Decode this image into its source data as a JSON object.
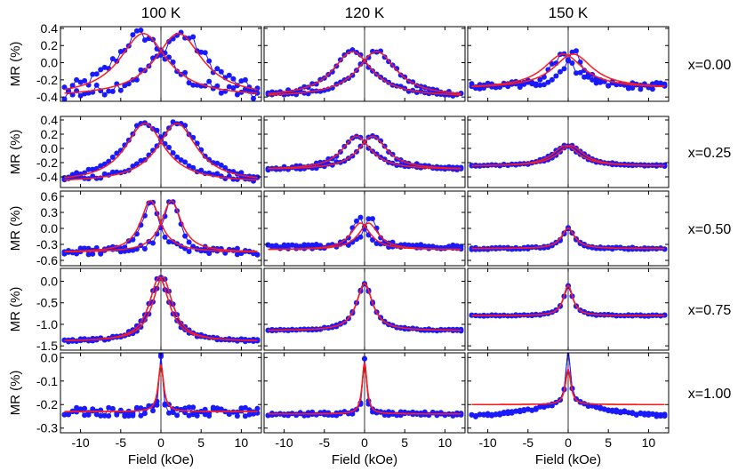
{
  "chart_data": {
    "type": "scatter",
    "layout": "grid-5x3",
    "xlabel": "Field (kOe)",
    "ylabel": "MR (%)",
    "xlim": [
      -12.5,
      12.5
    ],
    "xticks": [
      -10,
      -5,
      0,
      5,
      10
    ],
    "columns": [
      "100 K",
      "120 K",
      "150 K"
    ],
    "rows": [
      {
        "label": "x=0.00",
        "ylim": [
          -0.45,
          0.42
        ],
        "yticks": [
          -0.4,
          -0.2,
          0.0,
          0.2,
          0.4
        ],
        "ytick_labels": [
          "-0.4",
          "-0.2",
          "0.0",
          "0.2",
          "0.4"
        ]
      },
      {
        "label": "x=0.25",
        "ylim": [
          -0.55,
          0.45
        ],
        "yticks": [
          -0.4,
          -0.2,
          0.0,
          0.2,
          0.4
        ],
        "ytick_labels": [
          "-0.4",
          "-0.2",
          "0.0",
          "0.2",
          "0.4"
        ]
      },
      {
        "label": "x=0.50",
        "ylim": [
          -0.7,
          0.7
        ],
        "yticks": [
          -0.6,
          -0.3,
          0.0,
          0.3,
          0.6
        ],
        "ytick_labels": [
          "-0.6",
          "-0.3",
          "0.0",
          "0.3",
          "0.6"
        ]
      },
      {
        "label": "x=0.75",
        "ylim": [
          -1.6,
          0.3
        ],
        "yticks": [
          -1.5,
          -1.0,
          -0.5,
          0.0
        ],
        "ytick_labels": [
          "-1.5",
          "-1.0",
          "-0.5",
          "0.0"
        ]
      },
      {
        "label": "x=1.00",
        "ylim": [
          -0.32,
          0.02
        ],
        "yticks": [
          -0.3,
          -0.2,
          -0.1,
          0.0
        ],
        "ytick_labels": [
          "-0.3",
          "-0.2",
          "-0.1",
          "0.0"
        ]
      }
    ],
    "series_colors": {
      "data": "#1a1aff",
      "fit": "#ff1a1a"
    },
    "panels": [
      [
        {
          "base": -0.42,
          "peak": 0.33,
          "h": 2.5,
          "w": 4.0,
          "noise": 0.07,
          "fit_base": -0.4,
          "fit_peak": 0.34,
          "fit_h": 2.2,
          "fit_w": 3.6
        },
        {
          "base": -0.4,
          "peak": 0.13,
          "h": 1.5,
          "w": 3.0,
          "noise": 0.02,
          "fit_base": -0.4,
          "fit_peak": 0.13,
          "fit_h": 1.5,
          "fit_w": 3.0
        },
        {
          "base": -0.28,
          "peak": 0.12,
          "h": 0.7,
          "w": 1.5,
          "noise": 0.04,
          "fit_base": -0.3,
          "fit_peak": 0.1,
          "fit_h": 0.6,
          "fit_w": 3.0
        }
      ],
      [
        {
          "base": -0.48,
          "peak": 0.37,
          "h": 2.0,
          "w": 3.3,
          "noise": 0.03,
          "fit_base": -0.48,
          "fit_peak": 0.35,
          "fit_h": 2.0,
          "fit_w": 3.0
        },
        {
          "base": -0.3,
          "peak": 0.17,
          "h": 1.0,
          "w": 2.2,
          "noise": 0.02,
          "fit_base": -0.3,
          "fit_peak": 0.17,
          "fit_h": 1.0,
          "fit_w": 2.2
        },
        {
          "base": -0.25,
          "peak": 0.04,
          "h": 0.3,
          "w": 2.0,
          "noise": 0.01,
          "fit_base": -0.25,
          "fit_peak": 0.04,
          "fit_h": 0.3,
          "fit_w": 2.0
        }
      ],
      [
        {
          "base": -0.45,
          "peak": 0.52,
          "h": 1.3,
          "w": 1.2,
          "noise": 0.06,
          "fit_base": -0.45,
          "fit_peak": 0.52,
          "fit_h": 1.3,
          "fit_w": 1.5
        },
        {
          "base": -0.35,
          "peak": 0.2,
          "h": 0.7,
          "w": 1.0,
          "noise": 0.04,
          "fit_base": -0.4,
          "fit_peak": 0.1,
          "fit_h": 0.5,
          "fit_w": 1.5
        },
        {
          "base": -0.38,
          "peak": 0.0,
          "h": 0.0,
          "w": 0.9,
          "noise": 0.02,
          "fit_base": -0.38,
          "fit_peak": 0.0,
          "fit_h": 0.0,
          "fit_w": 1.0
        }
      ],
      [
        {
          "base": -1.4,
          "peak": 0.1,
          "h": 0.2,
          "w": 1.5,
          "noise": 0.03,
          "fit_base": -1.4,
          "fit_peak": 0.1,
          "fit_h": 0.2,
          "fit_w": 1.5
        },
        {
          "base": -1.15,
          "peak": -0.05,
          "h": 0.0,
          "w": 1.2,
          "noise": 0.02,
          "fit_base": -1.15,
          "fit_peak": -0.05,
          "fit_h": 0.0,
          "fit_w": 1.2
        },
        {
          "base": -0.8,
          "peak": -0.1,
          "h": 0.0,
          "w": 0.7,
          "noise": 0.015,
          "fit_base": -0.8,
          "fit_peak": -0.1,
          "fit_h": 0.0,
          "fit_w": 0.7
        }
      ],
      [
        {
          "base": -0.23,
          "peak": 0.0,
          "h": 0.0,
          "w": 0.25,
          "noise": 0.02,
          "fit_base": -0.23,
          "fit_peak": -0.03,
          "fit_h": 0.0,
          "fit_w": 0.4
        },
        {
          "base": -0.24,
          "peak": 0.0,
          "h": 0.0,
          "w": 0.25,
          "noise": 0.008,
          "fit_base": -0.24,
          "fit_peak": -0.02,
          "fit_h": 0.0,
          "fit_w": 0.35
        },
        {
          "base": -0.25,
          "peak": -0.01,
          "h": 0.0,
          "w": 0.3,
          "noise": 0.006,
          "fit_base": -0.2,
          "fit_peak": -0.05,
          "fit_h": 0.0,
          "fit_w": 0.4,
          "fit_slope_end": -0.2,
          "data_wide_w": 6.0,
          "data_wide_amp": 0.06
        }
      ]
    ]
  }
}
